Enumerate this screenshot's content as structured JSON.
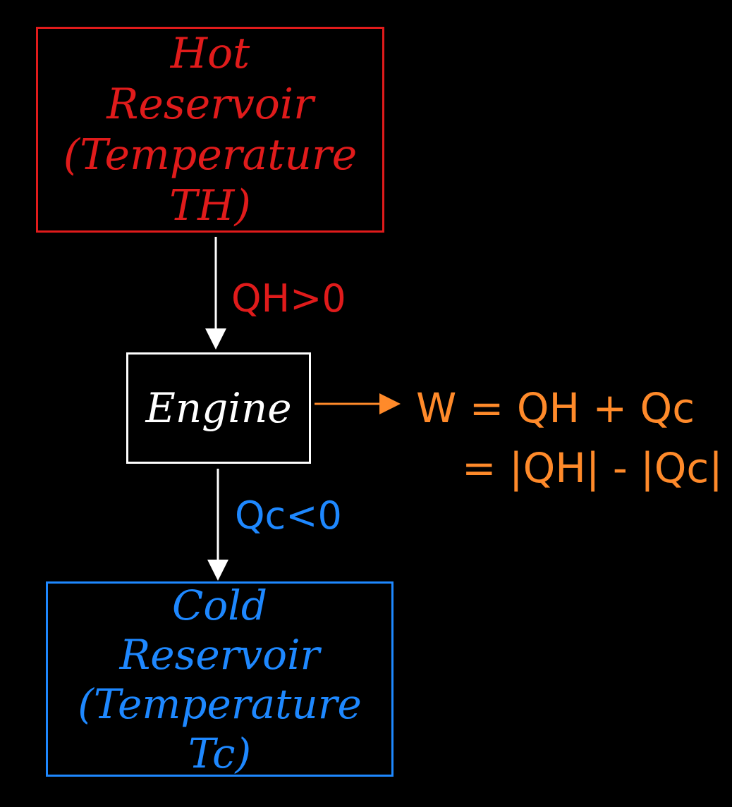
{
  "hot_reservoir": {
    "line1": "Hot",
    "line2": "Reservoir",
    "line3": "(Temperature TH)"
  },
  "engine": {
    "label": "Engine"
  },
  "cold_reservoir": {
    "line1": "Cold",
    "line2": "Reservoir",
    "line3": "(Temperature Tc)"
  },
  "heat_in": {
    "label": "QH>0"
  },
  "heat_out": {
    "label": "Qc<0"
  },
  "work": {
    "line1": "W = QH + Qc",
    "line2": "= |QH| - |Qc|"
  },
  "colors": {
    "hot": "#e01b1b",
    "cold": "#1e88ff",
    "work": "#ff8a2a",
    "engine": "#ffffff",
    "background": "#000000"
  }
}
